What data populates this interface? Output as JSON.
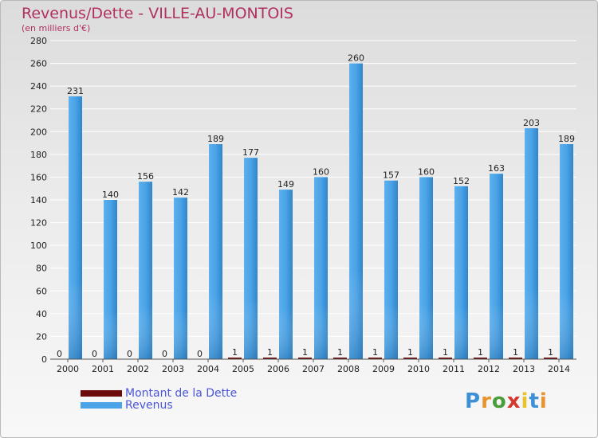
{
  "chart_data": {
    "type": "bar",
    "title": "Revenus/Dette - VILLE-AU-MONTOIS",
    "subtitle": "(en milliers d'€)",
    "categories": [
      "2000",
      "2001",
      "2002",
      "2003",
      "2004",
      "2005",
      "2006",
      "2007",
      "2008",
      "2009",
      "2010",
      "2011",
      "2012",
      "2013",
      "2014"
    ],
    "series": [
      {
        "name": "Montant de la Dette",
        "color": "#6b0b0b",
        "values": [
          0,
          0,
          0,
          0,
          0,
          1,
          1,
          1,
          1,
          1,
          1,
          1,
          1,
          1,
          1
        ]
      },
      {
        "name": "Revenus",
        "color": "#4aa3e6",
        "values": [
          231,
          140,
          156,
          142,
          189,
          177,
          149,
          160,
          260,
          157,
          160,
          152,
          163,
          203,
          189
        ]
      }
    ],
    "ylim": [
      0,
      280
    ],
    "yticks": [
      0,
      20,
      40,
      60,
      80,
      100,
      120,
      140,
      160,
      180,
      200,
      220,
      240,
      260,
      280
    ],
    "grid": true,
    "legend_position": "bottom-left"
  },
  "logo": {
    "letters": [
      "P",
      "r",
      "o",
      "x",
      "i",
      "t",
      "i"
    ],
    "colors": [
      "#3d8fd6",
      "#e8932b",
      "#4a9e3a",
      "#d6382e",
      "#e8c32b",
      "#3d8fd6",
      "#e8932b"
    ]
  }
}
